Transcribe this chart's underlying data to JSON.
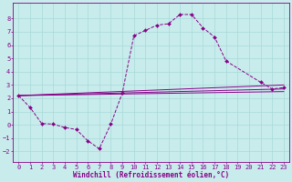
{
  "xlabel": "Windchill (Refroidissement éolien,°C)",
  "xlim": [
    -0.5,
    23.5
  ],
  "ylim": [
    -2.8,
    9.2
  ],
  "xticks": [
    0,
    1,
    2,
    3,
    4,
    5,
    6,
    7,
    8,
    9,
    10,
    11,
    12,
    13,
    14,
    15,
    16,
    17,
    18,
    19,
    20,
    21,
    22,
    23
  ],
  "yticks": [
    -2,
    -1,
    0,
    1,
    2,
    3,
    4,
    5,
    6,
    7,
    8
  ],
  "bg_color": "#c8ecec",
  "line_color": "#880088",
  "grid_color": "#a8d8d8",
  "line1_x": [
    0,
    1,
    2,
    3,
    4,
    5,
    6,
    7,
    8,
    9,
    10,
    11,
    12,
    13,
    14,
    15,
    16,
    17,
    18,
    21,
    22,
    23
  ],
  "line1_y": [
    2.2,
    1.3,
    0.1,
    0.05,
    -0.2,
    -0.35,
    -1.2,
    -1.8,
    0.05,
    2.4,
    6.7,
    7.1,
    7.5,
    7.6,
    8.3,
    8.3,
    7.3,
    6.6,
    4.8,
    3.2,
    2.7,
    2.8
  ],
  "line2_x": [
    0,
    23
  ],
  "line2_y": [
    2.2,
    2.5
  ],
  "line3_x": [
    0,
    23
  ],
  "line3_y": [
    2.2,
    2.7
  ],
  "line4_x": [
    0,
    23
  ],
  "line4_y": [
    2.2,
    3.0
  ],
  "font_size": 5.5,
  "tick_font_size": 5.0,
  "lw_main": 0.7,
  "lw_reg": 0.7
}
